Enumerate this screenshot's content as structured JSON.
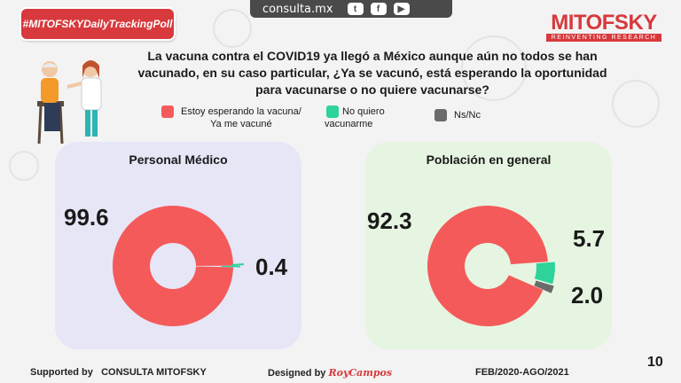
{
  "hashtag": "#MITOFSKYDailyTrackingPoll",
  "site": "consulta.mx",
  "social_icons": [
    "twitter-icon",
    "facebook-icon",
    "youtube-icon"
  ],
  "brand": {
    "name": "MITOFSKY",
    "tagline": "REINVENTING RESEARCH"
  },
  "question": "La vacuna contra el COVID19 ya llegó a México aunque aún no todos se han vacunado, en su caso particular, ¿Ya se vacunó, está esperando la oportunidad para vacunarse o no quiere vacunarse?",
  "legend": [
    {
      "line1": "Estoy esperando la vacuna/",
      "line2": "Ya me vacuné",
      "color": "#f45a5a"
    },
    {
      "line1": "No quiero",
      "line2": "vacunarme",
      "color": "#2ed39a"
    },
    {
      "line1": "Ns/Nc",
      "line2": "",
      "color": "#6b6b6b"
    }
  ],
  "chart_data": [
    {
      "type": "pie",
      "title": "Personal Médico",
      "categories": [
        "Estoy esperando la vacuna/ Ya me vacuné",
        "No quiero vacunarme",
        "Ns/Nc"
      ],
      "values": [
        99.6,
        0.4,
        0
      ],
      "labels": [
        "99.6",
        "0.4",
        ""
      ],
      "colors": [
        "#f45a5a",
        "#2ed39a",
        "#6b6b6b"
      ],
      "panel_color": "#e6e6f7"
    },
    {
      "type": "pie",
      "title": "Población en general",
      "categories": [
        "Estoy esperando la vacuna/ Ya me vacuné",
        "No quiero vacunarme",
        "Ns/Nc"
      ],
      "values": [
        92.3,
        5.7,
        2.0
      ],
      "labels": [
        "92.3",
        "5.7",
        "2.0"
      ],
      "colors": [
        "#f45a5a",
        "#2ed39a",
        "#6b6b6b"
      ],
      "panel_color": "#e6f5e1"
    }
  ],
  "footer": {
    "supported_prefix": "Supported by",
    "supported": "CONSULTA MITOFSKY",
    "designed_prefix": "Designed by",
    "designer": "RoyCampos",
    "period": "FEB/2020-AGO/2021"
  },
  "page_number": "10"
}
